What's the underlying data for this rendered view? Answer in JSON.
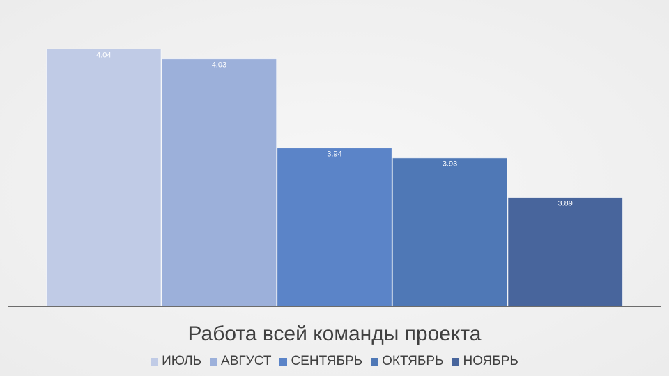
{
  "chart_data": {
    "type": "bar",
    "title": "Работа всей команды проекта",
    "categories": [
      null
    ],
    "series": [
      {
        "name": "ИЮЛЬ",
        "color": "#c0cbe6",
        "values": [
          4.04
        ]
      },
      {
        "name": "АВГУСТ",
        "color": "#9cb0da",
        "values": [
          4.03
        ]
      },
      {
        "name": "СЕНТЯБРЬ",
        "color": "#5b84c8",
        "values": [
          3.94
        ]
      },
      {
        "name": "ОКТЯБРЬ",
        "color": "#4f78b6",
        "values": [
          3.93
        ]
      },
      {
        "name": "НОЯБРЬ",
        "color": "#48659c",
        "values": [
          3.89
        ]
      }
    ],
    "ylim": [
      3.78,
      4.06
    ],
    "legend": "bottom"
  }
}
